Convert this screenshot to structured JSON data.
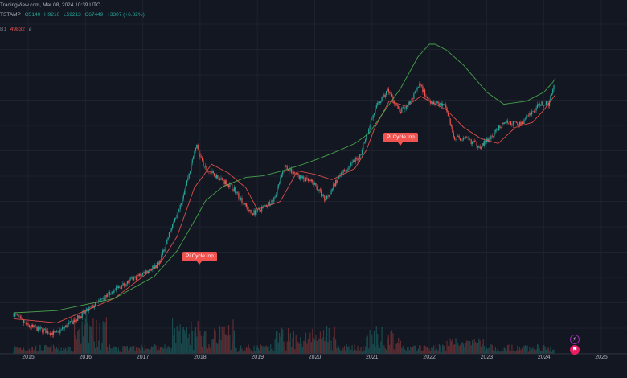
{
  "header": {
    "publisher_line": "TradingView.com, Mar 08, 2024 10:39 UTC",
    "symbol_line": {
      "exchange": "TSTAMP",
      "open": "O5140",
      "high": "H9210",
      "low": "L59213",
      "close": "C67449",
      "change": "+3307 (+6.82%)"
    },
    "indicator_line": {
      "label": "B1",
      "value": "49832",
      "symbol": "ø"
    }
  },
  "annotations": {
    "pi_top_1": "Pi Cycle top",
    "pi_top_2": "Pi Cycle top"
  },
  "icons": {
    "event_icon_1": "lightning-icon",
    "event_icon_2": "flag-icon"
  },
  "colors": {
    "background": "#131722",
    "up": "#26a69a",
    "down": "#ef5350",
    "ma_long": "#4caf50",
    "ma_short": "#ef5350",
    "label": "#f05350"
  },
  "chart_data": {
    "type": "line",
    "x_tick_labels": [
      "2015",
      "2016",
      "2017",
      "2018",
      "2019",
      "2020",
      "2021",
      "2022",
      "2023",
      "2024",
      "2025"
    ],
    "grid": true,
    "log_scale": true,
    "series": [
      {
        "x": [
          2014.75,
          2015.0,
          2015.5,
          2016.0,
          2016.5,
          2017.0,
          2017.3,
          2017.5,
          2017.7,
          2017.85,
          2017.95,
          2018.1,
          2018.3,
          2018.6,
          2018.9,
          2019.0,
          2019.3,
          2019.5,
          2019.8,
          2020.0,
          2020.2,
          2020.5,
          2020.8,
          2021.0,
          2021.1,
          2021.3,
          2021.5,
          2021.7,
          2021.85,
          2022.0,
          2022.3,
          2022.45,
          2022.7,
          2022.9,
          2023.1,
          2023.3,
          2023.6,
          2023.8,
          2023.95,
          2024.1,
          2024.2
        ],
        "values": [
          400,
          300,
          250,
          400,
          650,
          950,
          1200,
          2500,
          5000,
          10000,
          17000,
          10000,
          8500,
          6500,
          3700,
          3800,
          5000,
          10500,
          8000,
          7200,
          5000,
          9200,
          13000,
          29000,
          40000,
          58000,
          35000,
          45000,
          65000,
          46000,
          40000,
          20000,
          19000,
          16500,
          20000,
          28000,
          27000,
          34000,
          43000,
          42000,
          68000
        ]
      },
      {
        "x": [
          2014.75,
          2015.5,
          2016.5,
          2017.3,
          2017.6,
          2017.9,
          2018.2,
          2018.5,
          2018.8,
          2019.0,
          2019.4,
          2019.7,
          2020.0,
          2020.3,
          2020.7,
          2020.9,
          2021.05,
          2021.3,
          2021.6,
          2021.85,
          2022.0,
          2022.3,
          2022.6,
          2022.9,
          2023.2,
          2023.5,
          2023.8,
          2024.0,
          2024.2
        ],
        "values": [
          350,
          320,
          550,
          1200,
          2200,
          6500,
          11000,
          9000,
          6500,
          4000,
          4800,
          9500,
          8800,
          7800,
          10000,
          15000,
          25000,
          45000,
          40000,
          50000,
          45000,
          37000,
          25000,
          19500,
          17500,
          25000,
          28000,
          37000,
          52000
        ]
      },
      {
        "x": [
          2014.75,
          2015.5,
          2016.5,
          2017.2,
          2017.6,
          2017.9,
          2018.1,
          2018.4,
          2018.8,
          2019.1,
          2019.5,
          2019.9,
          2020.3,
          2020.7,
          2020.95,
          2021.2,
          2021.5,
          2021.8,
          2022.0,
          2022.1,
          2022.3,
          2022.6,
          2023.0,
          2023.3,
          2023.7,
          2024.0,
          2024.15,
          2024.2
        ],
        "values": [
          400,
          420,
          550,
          900,
          1600,
          3100,
          4900,
          6700,
          8200,
          8500,
          9700,
          11500,
          14000,
          17500,
          22000,
          35000,
          60000,
          120000,
          160000,
          160000,
          140000,
          100000,
          55000,
          42000,
          45000,
          55000,
          68000,
          75000
        ]
      }
    ]
  }
}
